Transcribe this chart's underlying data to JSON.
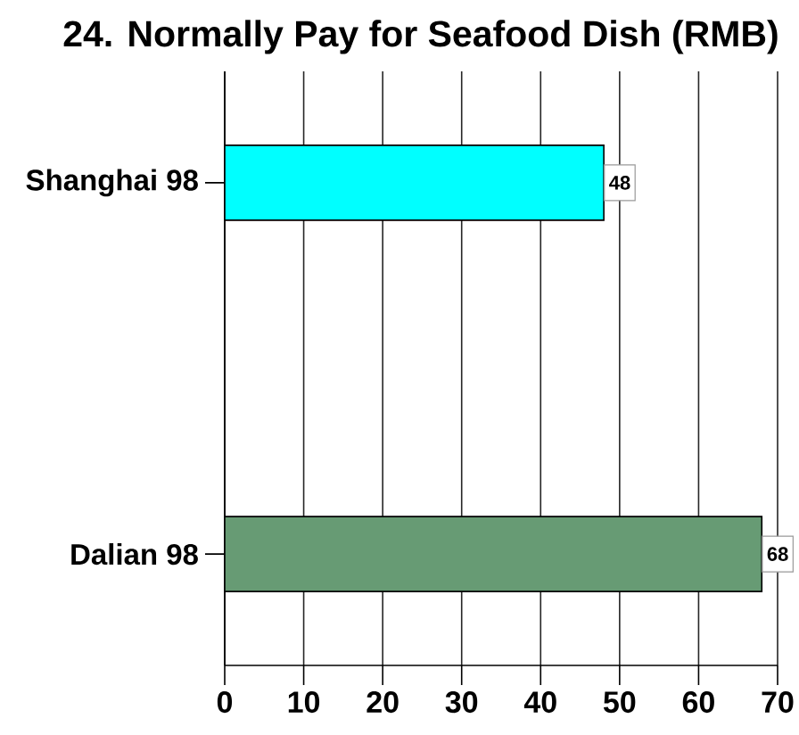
{
  "chart_data": {
    "type": "bar",
    "orientation": "horizontal",
    "title": "24. Normally Pay for Seafood Dish (RMB)",
    "categories": [
      "Shanghai 98",
      "Dalian 98"
    ],
    "values": [
      48,
      68
    ],
    "colors": [
      "#00ffff",
      "#679b74"
    ],
    "xlim": [
      0,
      70
    ],
    "xticks": [
      0,
      10,
      20,
      30,
      40,
      50,
      60,
      70
    ],
    "grid": "x",
    "data_labels": true
  }
}
